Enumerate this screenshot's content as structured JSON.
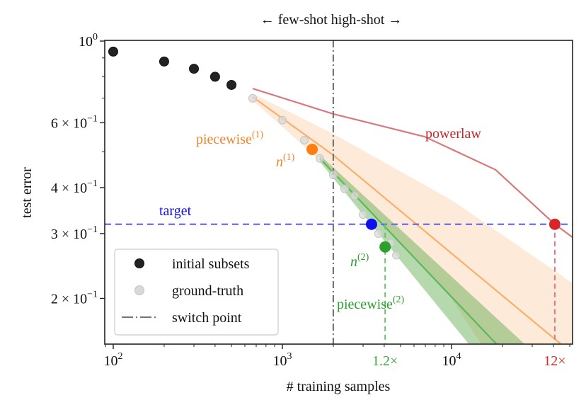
{
  "chart_data": {
    "type": "scatter",
    "title": "",
    "top_annotation": "← few-shot   high-shot →",
    "xlabel": "# training samples",
    "ylabel": "test error",
    "xscale": "log",
    "yscale": "log",
    "xlim": [
      89,
      52000
    ],
    "ylim": [
      0.15,
      1.0
    ],
    "x_ticks": [
      {
        "value": 100,
        "base": "10",
        "exp": "2"
      },
      {
        "value": 1000,
        "base": "10",
        "exp": "3"
      },
      {
        "value": 10000,
        "base": "10",
        "exp": "4"
      }
    ],
    "x_extra_ticks": [
      {
        "value": 4050,
        "label": "1.2×",
        "color": "#3aa53a"
      },
      {
        "value": 40800,
        "label": "12×",
        "color": "#d62728"
      }
    ],
    "y_ticks": [
      {
        "value": 1.0,
        "base": "10",
        "exp": "0",
        "mant": ""
      },
      {
        "value": 0.6,
        "base": "10",
        "exp": "−1",
        "mant": "6 × "
      },
      {
        "value": 0.4,
        "base": "10",
        "exp": "−1",
        "mant": "4 × "
      },
      {
        "value": 0.3,
        "base": "10",
        "exp": "−1",
        "mant": "3 × "
      },
      {
        "value": 0.2,
        "base": "10",
        "exp": "−1",
        "mant": "2 × "
      }
    ],
    "series": [
      {
        "name": "initial subsets",
        "kind": "points",
        "color": "#222222",
        "x": [
          100,
          200,
          300,
          400,
          500
        ],
        "y": [
          0.936,
          0.88,
          0.841,
          0.8,
          0.76
        ]
      },
      {
        "name": "ground-truth",
        "kind": "points",
        "color": "#d9d9d9",
        "x": [
          667,
          1000,
          1350,
          1667,
          2000,
          2333,
          2670,
          3000,
          3700,
          4370,
          4720
        ],
        "y": [
          0.699,
          0.61,
          0.538,
          0.48,
          0.433,
          0.397,
          0.38,
          0.338,
          0.3,
          0.283,
          0.262
        ]
      },
      {
        "name": "powerlaw",
        "kind": "line",
        "color": "#d9787c",
        "x": [
          667,
          2000,
          6930,
          18200,
          40800,
          52000
        ],
        "y": [
          0.743,
          0.634,
          0.55,
          0.447,
          0.318,
          0.293
        ]
      },
      {
        "name": "piecewise(1)",
        "kind": "line",
        "color": "#f8b06a",
        "x": [
          667,
          2000,
          10000,
          44500
        ],
        "y": [
          0.705,
          0.49,
          0.265,
          0.15
        ]
      },
      {
        "name": "piecewise(2)",
        "kind": "line",
        "color": "#5cb85c",
        "x": [
          1667,
          18500
        ],
        "y": [
          0.48,
          0.15
        ]
      }
    ],
    "bands": [
      {
        "name": "piecewise(1) band",
        "color": "#fddcbf",
        "opacity": 0.6,
        "upper": {
          "x": [
            667,
            2000,
            10000,
            52000
          ],
          "y": [
            0.72,
            0.56,
            0.37,
            0.22
          ]
        },
        "lower": {
          "x": [
            667,
            2000,
            10000,
            15000
          ],
          "y": [
            0.69,
            0.44,
            0.2,
            0.15
          ]
        }
      },
      {
        "name": "piecewise(2) band",
        "color": "#5aab4a",
        "opacity": 0.45,
        "upper": {
          "x": [
            1667,
            27200
          ],
          "y": [
            0.49,
            0.15
          ]
        },
        "lower": {
          "x": [
            1667,
            12700
          ],
          "y": [
            0.47,
            0.15
          ]
        }
      }
    ],
    "switch_point": {
      "label": "switch point",
      "x": 2000,
      "color": "#777777"
    },
    "target": {
      "label": "target",
      "y": 0.318,
      "color": "#6b6bf0",
      "label_color": "#1010e0"
    },
    "markers": [
      {
        "name": "n(1)",
        "x": 1500,
        "y": 0.508,
        "color": "#ff7f0e"
      },
      {
        "name": "target-hit",
        "x": 3365,
        "y": 0.318,
        "color": "#1010ee"
      },
      {
        "name": "n(2)",
        "x": 4050,
        "y": 0.276,
        "color": "#2ca02c"
      },
      {
        "name": "powerlaw-hit",
        "x": 40800,
        "y": 0.318,
        "color": "#d62728"
      }
    ],
    "dropdowns": [
      {
        "x": 4050,
        "from": 0.318,
        "color": "#6cc26c"
      },
      {
        "x": 40800,
        "from": 0.318,
        "color": "#e07a7e"
      }
    ],
    "annotations": [
      {
        "key": "pw1",
        "text": "piecewise",
        "sup": "(1)",
        "italic": false,
        "color": "#f0862a"
      },
      {
        "key": "n1",
        "text": "n",
        "sup": "(1)",
        "italic": true,
        "color": "#f0862a"
      },
      {
        "key": "pl",
        "text": "powerlaw",
        "sup": "",
        "italic": false,
        "color": "#c0282c"
      },
      {
        "key": "n2",
        "text": "n",
        "sup": "(2)",
        "italic": true,
        "color": "#2e9e2e"
      },
      {
        "key": "pw2",
        "text": "piecewise",
        "sup": "(2)",
        "italic": false,
        "color": "#2e9e2e"
      }
    ],
    "legend": {
      "placement": "lower-left",
      "entries": [
        {
          "label": "initial subsets",
          "marker": "dot",
          "color": "#222222"
        },
        {
          "label": "ground-truth",
          "marker": "dot",
          "color": "#d9d9d9"
        },
        {
          "label": "switch point",
          "marker": "dashdot",
          "color": "#777777"
        }
      ]
    }
  }
}
